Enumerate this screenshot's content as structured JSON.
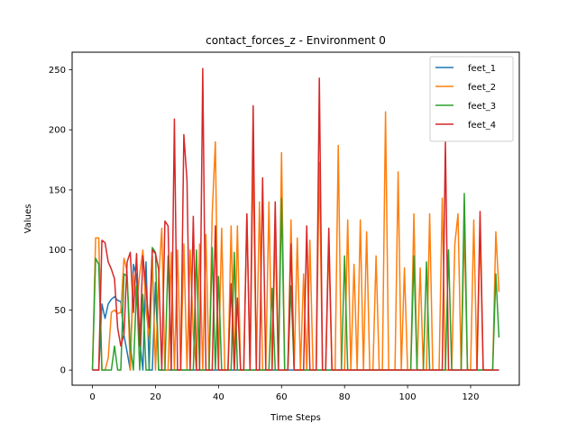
{
  "chart_data": {
    "type": "line",
    "title": "contact_forces_z - Environment 0",
    "xlabel": "Time Steps",
    "ylabel": "Values",
    "xlim": [
      -6.45,
      135.45
    ],
    "ylim": [
      -12.6,
      264.6
    ],
    "xticks": [
      0,
      20,
      40,
      60,
      80,
      100,
      120
    ],
    "yticks": [
      0,
      50,
      100,
      150,
      200,
      250
    ],
    "grid": false,
    "legend_position": "top-right",
    "x": [
      0,
      1,
      2,
      3,
      4,
      5,
      6,
      7,
      8,
      9,
      10,
      11,
      12,
      13,
      14,
      15,
      16,
      17,
      18,
      19,
      20,
      21,
      22,
      23,
      24,
      25,
      26,
      27,
      28,
      29,
      30,
      31,
      32,
      33,
      34,
      35,
      36,
      37,
      38,
      39,
      40,
      41,
      42,
      43,
      44,
      45,
      46,
      47,
      48,
      49,
      50,
      51,
      52,
      53,
      54,
      55,
      56,
      57,
      58,
      59,
      60,
      61,
      62,
      63,
      64,
      65,
      66,
      67,
      68,
      69,
      70,
      71,
      72,
      73,
      74,
      75,
      76,
      77,
      78,
      79,
      80,
      81,
      82,
      83,
      84,
      85,
      86,
      87,
      88,
      89,
      90,
      91,
      92,
      93,
      94,
      95,
      96,
      97,
      98,
      99,
      100,
      101,
      102,
      103,
      104,
      105,
      106,
      107,
      108,
      109,
      110,
      111,
      112,
      113,
      114,
      115,
      116,
      117,
      118,
      119,
      120,
      121,
      122,
      123,
      124,
      125,
      126,
      127,
      128,
      129
    ],
    "series": [
      {
        "name": "feet_1",
        "color": "#1f77b4",
        "values": [
          0,
          0,
          0,
          55,
          43,
          55,
          59,
          61,
          58,
          57,
          29,
          15,
          0,
          88,
          78,
          25,
          0,
          90,
          0,
          0,
          73,
          0,
          0,
          0,
          0,
          0,
          0,
          0,
          0,
          0,
          0,
          0,
          0,
          0,
          0,
          0,
          0,
          0,
          0,
          0,
          0,
          0,
          0,
          0,
          0,
          0,
          0,
          0,
          0,
          0,
          0,
          0,
          0,
          0,
          0,
          0,
          0,
          0,
          0,
          0,
          0,
          0,
          0,
          0,
          0,
          0,
          0,
          0,
          0,
          0,
          0,
          0,
          0,
          0,
          0,
          0,
          0,
          0,
          0,
          0,
          0,
          0,
          0,
          0,
          0,
          0,
          0,
          0,
          0,
          0,
          0,
          0,
          0,
          0,
          0,
          0,
          0,
          0,
          0,
          0,
          0,
          0,
          0,
          0,
          0,
          0,
          0,
          0,
          0,
          0,
          0,
          0,
          0,
          0,
          0,
          0,
          0,
          0,
          0,
          0,
          0,
          0,
          0,
          0,
          0,
          0,
          0,
          0,
          0,
          0
        ]
      },
      {
        "name": "feet_2",
        "color": "#ff7f0e",
        "values": [
          0,
          110,
          110,
          0,
          0,
          10,
          48,
          50,
          47,
          48,
          93,
          82,
          0,
          80,
          55,
          80,
          100,
          50,
          27,
          95,
          0,
          75,
          118,
          0,
          0,
          98,
          0,
          100,
          0,
          105,
          0,
          100,
          30,
          0,
          105,
          0,
          113,
          0,
          130,
          190,
          0,
          118,
          0,
          0,
          120,
          0,
          120,
          0,
          0,
          130,
          0,
          175,
          0,
          140,
          0,
          0,
          140,
          0,
          115,
          0,
          181,
          0,
          0,
          125,
          0,
          110,
          0,
          80,
          0,
          108,
          0,
          0,
          173,
          0,
          0,
          105,
          0,
          0,
          187,
          0,
          0,
          125,
          0,
          88,
          0,
          125,
          0,
          115,
          0,
          0,
          95,
          0,
          0,
          215,
          0,
          0,
          0,
          165,
          0,
          85,
          0,
          0,
          130,
          0,
          85,
          0,
          0,
          130,
          0,
          0,
          0,
          143,
          0,
          0,
          0,
          105,
          130,
          0,
          118,
          0,
          0,
          125,
          0,
          115,
          0,
          0,
          0,
          0,
          115,
          65
        ]
      },
      {
        "name": "feet_3",
        "color": "#2ca02c",
        "values": [
          0,
          93,
          88,
          0,
          0,
          0,
          0,
          20,
          0,
          0,
          80,
          78,
          20,
          0,
          70,
          0,
          63,
          0,
          0,
          102,
          98,
          0,
          0,
          0,
          95,
          0,
          0,
          0,
          0,
          0,
          0,
          0,
          0,
          100,
          0,
          0,
          0,
          0,
          102,
          0,
          78,
          0,
          0,
          0,
          0,
          98,
          0,
          0,
          0,
          0,
          0,
          0,
          0,
          0,
          0,
          0,
          0,
          68,
          0,
          0,
          143,
          0,
          0,
          70,
          0,
          0,
          0,
          0,
          0,
          0,
          0,
          0,
          0,
          0,
          0,
          0,
          0,
          0,
          0,
          0,
          95,
          0,
          0,
          0,
          0,
          0,
          0,
          0,
          0,
          0,
          0,
          0,
          0,
          0,
          0,
          0,
          0,
          0,
          0,
          0,
          0,
          0,
          95,
          0,
          0,
          0,
          90,
          0,
          0,
          0,
          0,
          0,
          0,
          100,
          0,
          0,
          0,
          0,
          147,
          0,
          0,
          0,
          0,
          0,
          0,
          0,
          0,
          0,
          80,
          27
        ]
      },
      {
        "name": "feet_4",
        "color": "#d62728",
        "values": [
          0,
          0,
          0,
          108,
          106,
          90,
          84,
          76,
          35,
          20,
          30,
          90,
          98,
          48,
          97,
          20,
          95,
          68,
          35,
          100,
          97,
          84,
          0,
          124,
          120,
          0,
          209,
          0,
          0,
          196,
          158,
          0,
          128,
          0,
          0,
          251,
          0,
          0,
          0,
          120,
          0,
          0,
          0,
          0,
          72,
          0,
          60,
          0,
          0,
          130,
          0,
          220,
          0,
          0,
          160,
          0,
          0,
          0,
          140,
          0,
          0,
          0,
          0,
          105,
          0,
          0,
          0,
          0,
          120,
          0,
          0,
          0,
          243,
          0,
          0,
          118,
          0,
          0,
          0,
          0,
          0,
          0,
          0,
          0,
          0,
          0,
          0,
          0,
          0,
          0,
          0,
          0,
          0,
          0,
          0,
          0,
          0,
          0,
          0,
          0,
          0,
          0,
          0,
          0,
          0,
          0,
          0,
          0,
          0,
          0,
          0,
          0,
          190,
          0,
          0,
          0,
          0,
          0,
          0,
          0,
          0,
          0,
          0,
          132,
          0,
          0,
          0,
          0,
          0,
          0
        ]
      }
    ]
  }
}
